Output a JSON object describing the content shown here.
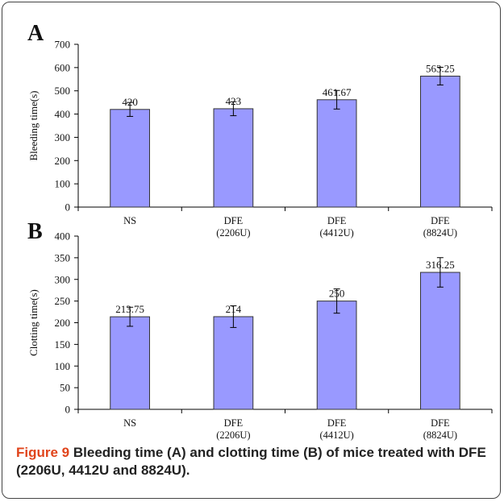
{
  "caption": {
    "label": "Figure 9",
    "text": "Bleeding time (A) and clotting time (B) of mice treated with DFE (2206U, 4412U and 8824U)."
  },
  "colors": {
    "bar_fill": "#9999ff",
    "bar_stroke": "#333333"
  },
  "chart_data": [
    {
      "type": "bar",
      "panel_label": "A",
      "ylabel": "Bleeding time(s)",
      "ylim": [
        0,
        700
      ],
      "yticks": [
        0,
        100,
        200,
        300,
        400,
        500,
        600,
        700
      ],
      "categories": [
        [
          "NS"
        ],
        [
          "DFE",
          "(2206U)"
        ],
        [
          "DFE",
          "(4412U)"
        ],
        [
          "DFE",
          "(8824U)"
        ]
      ],
      "values": [
        420,
        423,
        461.67,
        563.25
      ],
      "value_labels": [
        "420",
        "423",
        "461.67",
        "563.25"
      ],
      "errors": [
        30,
        30,
        40,
        38
      ],
      "grid": false
    },
    {
      "type": "bar",
      "panel_label": "B",
      "ylabel": "Clotting time(s)",
      "ylim": [
        0,
        400
      ],
      "yticks": [
        0,
        50,
        100,
        150,
        200,
        250,
        300,
        350,
        400
      ],
      "categories": [
        [
          "NS"
        ],
        [
          "DFE",
          "(2206U)"
        ],
        [
          "DFE",
          "(4412U)"
        ],
        [
          "DFE",
          "(8824U)"
        ]
      ],
      "values": [
        213.75,
        214,
        250,
        316.25
      ],
      "value_labels": [
        "213.75",
        "214",
        "250",
        "316.25"
      ],
      "errors": [
        22,
        25,
        28,
        34
      ],
      "grid": false
    }
  ]
}
